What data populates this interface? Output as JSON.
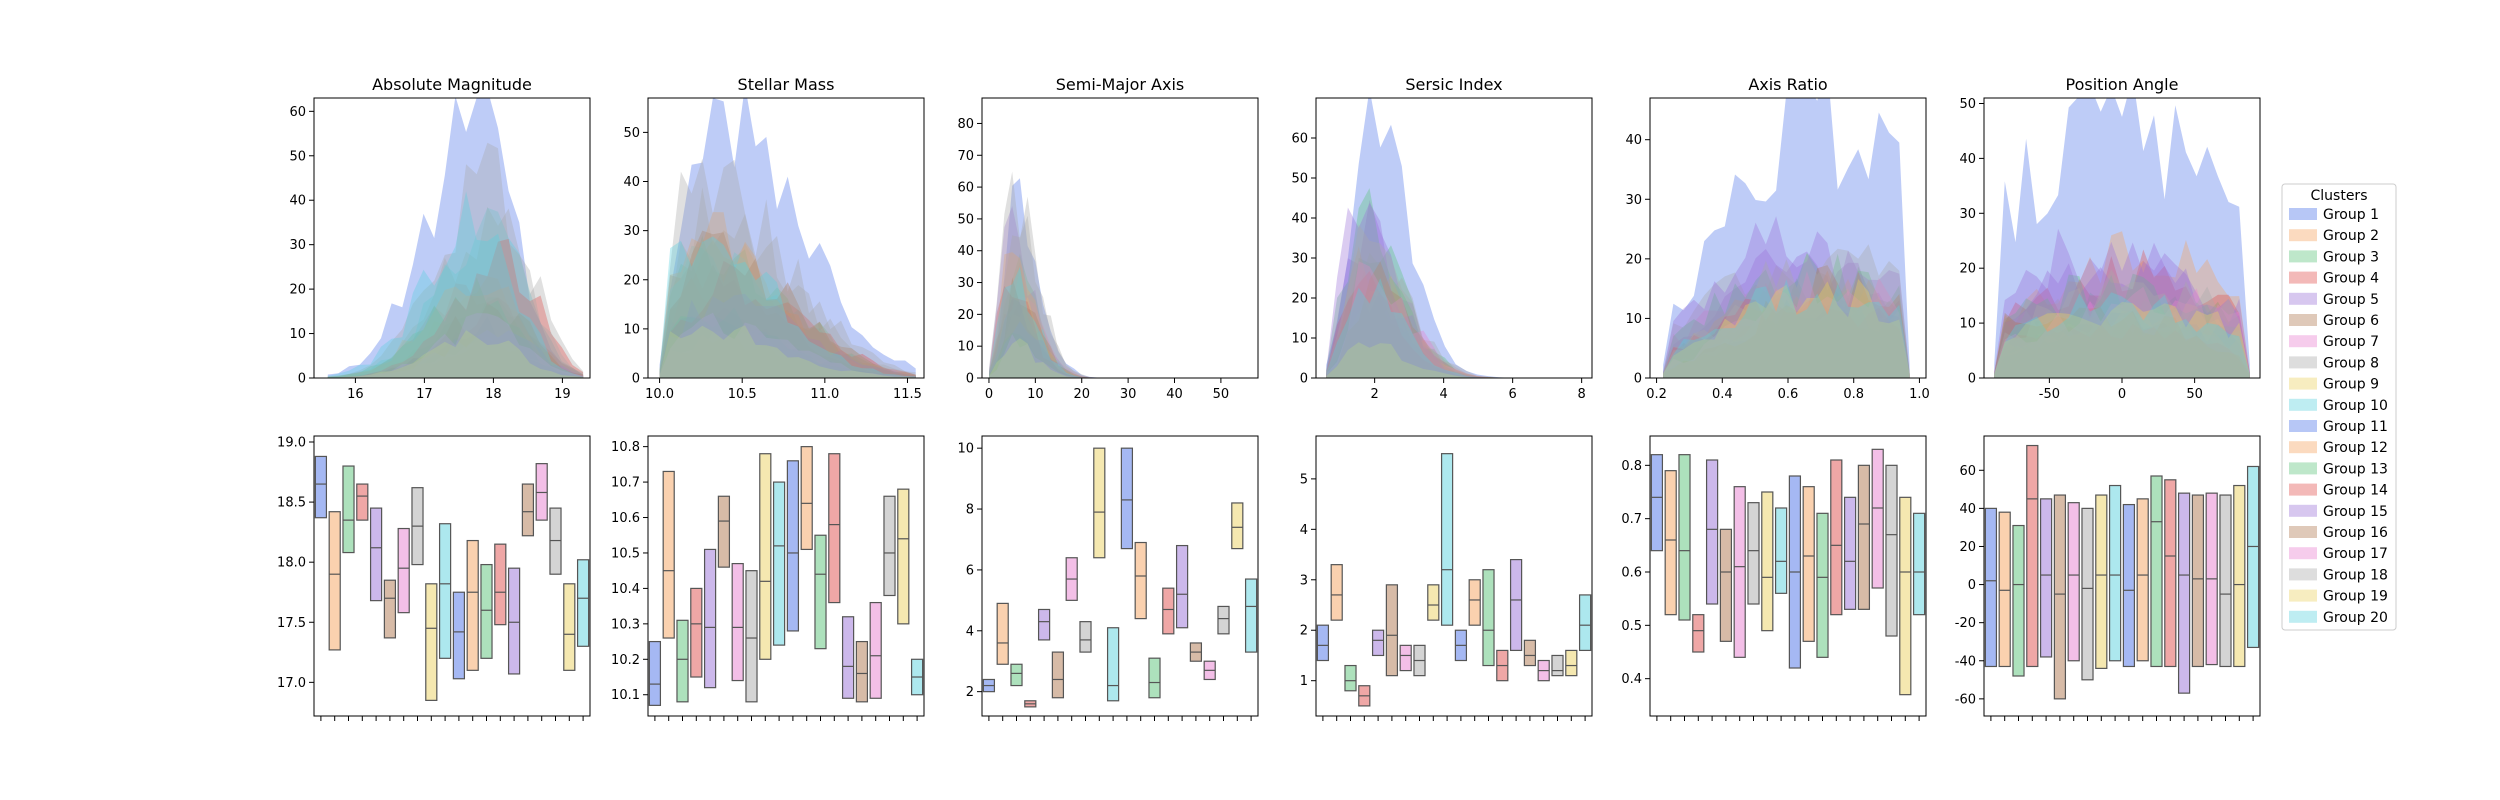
{
  "legend": {
    "title": "Clusters",
    "placement": "right"
  },
  "palette": [
    "#4c72e8",
    "#f5a35f",
    "#5cc47a",
    "#e0504d",
    "#9a72d8",
    "#b07850",
    "#e87fd0",
    "#a9a9a9",
    "#ecd262",
    "#5cd1de"
  ],
  "chart_data": [
    {
      "id": "p0",
      "type": "area",
      "title": "Absolute Magnitude",
      "xlabel": "",
      "ylabel": "",
      "xlim": [
        15.4,
        19.4
      ],
      "ylim": [
        0,
        63
      ],
      "xticks": [
        16,
        17,
        18,
        19
      ],
      "yticks": [
        0,
        10,
        20,
        30,
        40,
        50,
        60
      ],
      "lo": 15.6,
      "hi": 19.3,
      "peak": 18.0,
      "sl": 0.75,
      "sr": 0.5,
      "series1_peak": 61,
      "other_peaks": [
        28,
        36,
        30,
        20,
        18,
        22,
        48,
        16,
        40,
        22
      ]
    },
    {
      "id": "p1",
      "type": "area",
      "title": "Stellar Mass",
      "xlim": [
        9.93,
        11.6
      ],
      "ylim": [
        0,
        57
      ],
      "xticks": [
        10.0,
        10.5,
        11.0,
        11.5
      ],
      "yticks": [
        0,
        10,
        20,
        30,
        40,
        50
      ],
      "lo": 10.0,
      "hi": 11.55,
      "peak": 10.3,
      "sl": 0.25,
      "sr": 0.45,
      "series1_peak": 55,
      "other_peaks": [
        38,
        30,
        26,
        36,
        33,
        22,
        50,
        20,
        34,
        28
      ]
    },
    {
      "id": "p2",
      "type": "area",
      "title": "Semi-Major Axis",
      "xlim": [
        -1.5,
        58
      ],
      "ylim": [
        0,
        88
      ],
      "xticks": [
        0,
        10,
        20,
        30,
        40,
        50
      ],
      "yticks": [
        0,
        10,
        20,
        30,
        40,
        50,
        60,
        70,
        80
      ],
      "lo": 0,
      "hi": 40,
      "peak": 5,
      "sl": 2.2,
      "sr": 5,
      "series1_peak": 62,
      "other_peaks": [
        55,
        40,
        42,
        50,
        38,
        30,
        84,
        26,
        45,
        22
      ]
    },
    {
      "id": "p3",
      "type": "area",
      "title": "Sersic Index",
      "xlim": [
        0.3,
        8.3
      ],
      "ylim": [
        0,
        70
      ],
      "xticks": [
        2,
        4,
        6,
        8
      ],
      "yticks": [
        0,
        10,
        20,
        30,
        40,
        50,
        60
      ],
      "lo": 0.6,
      "hi": 8.1,
      "peak": 1.7,
      "sl": 0.5,
      "sr": 1.1,
      "series1_peak": 66,
      "other_peaks": [
        50,
        44,
        40,
        46,
        38,
        30,
        58,
        26,
        36,
        22
      ]
    },
    {
      "id": "p4",
      "type": "area",
      "title": "Axis Ratio",
      "xlim": [
        0.18,
        1.02
      ],
      "ylim": [
        0,
        47
      ],
      "xticks": [
        0.2,
        0.4,
        0.6,
        0.8,
        1.0
      ],
      "yticks": [
        0,
        10,
        20,
        30,
        40
      ],
      "lo": 0.22,
      "hi": 0.97,
      "peak": 0.65,
      "sl": 0.25,
      "sr": 0.4,
      "series1_peak": 44,
      "other_peaks": [
        30,
        22,
        24,
        26,
        28,
        18,
        35,
        16,
        24,
        14
      ]
    },
    {
      "id": "p5",
      "type": "area",
      "title": "Position Angle",
      "xlim": [
        -95,
        95
      ],
      "ylim": [
        0,
        51
      ],
      "xticks": [
        -50,
        0,
        50
      ],
      "yticks": [
        0,
        10,
        20,
        30,
        40,
        50
      ],
      "lo": -88,
      "hi": 88,
      "peak": 0,
      "sl": 80,
      "sr": 80,
      "series1_peak": 48,
      "other_peaks": [
        24,
        22,
        20,
        30,
        26,
        18,
        34,
        16,
        26,
        14
      ]
    },
    {
      "id": "b0",
      "type": "box",
      "ylim": [
        16.72,
        19.05
      ],
      "yticks": [
        17.0,
        17.5,
        18.0,
        18.5,
        19.0
      ],
      "boxes": [
        [
          18.37,
          18.88,
          18.65
        ],
        [
          17.27,
          18.42,
          17.9
        ],
        [
          18.08,
          18.8,
          18.35
        ],
        [
          18.35,
          18.65,
          18.55
        ],
        [
          17.68,
          18.45,
          18.12
        ],
        [
          17.37,
          17.85,
          17.7
        ],
        [
          17.58,
          18.28,
          17.95
        ],
        [
          17.98,
          18.62,
          18.3
        ],
        [
          16.85,
          17.82,
          17.45
        ],
        [
          17.2,
          18.32,
          17.82
        ],
        [
          17.03,
          17.75,
          17.42
        ],
        [
          17.1,
          18.18,
          17.75
        ],
        [
          17.2,
          17.98,
          17.6
        ],
        [
          17.48,
          18.15,
          17.75
        ],
        [
          17.07,
          17.95,
          17.5
        ],
        [
          18.22,
          18.65,
          18.42
        ],
        [
          18.35,
          18.82,
          18.58
        ],
        [
          17.9,
          18.45,
          18.18
        ],
        [
          17.1,
          17.82,
          17.4
        ],
        [
          17.3,
          18.02,
          17.7
        ]
      ]
    },
    {
      "id": "b1",
      "type": "box",
      "ylim": [
        10.04,
        10.83
      ],
      "yticks": [
        10.1,
        10.2,
        10.3,
        10.4,
        10.5,
        10.6,
        10.7,
        10.8
      ],
      "boxes": [
        [
          10.07,
          10.25,
          10.13
        ],
        [
          10.26,
          10.73,
          10.45
        ],
        [
          10.08,
          10.31,
          10.2
        ],
        [
          10.15,
          10.4,
          10.3
        ],
        [
          10.12,
          10.51,
          10.29
        ],
        [
          10.46,
          10.66,
          10.59
        ],
        [
          10.14,
          10.47,
          10.29
        ],
        [
          10.08,
          10.45,
          10.26
        ],
        [
          10.2,
          10.78,
          10.42
        ],
        [
          10.24,
          10.7,
          10.52
        ],
        [
          10.28,
          10.76,
          10.5
        ],
        [
          10.51,
          10.8,
          10.64
        ],
        [
          10.23,
          10.55,
          10.44
        ],
        [
          10.36,
          10.78,
          10.58
        ],
        [
          10.09,
          10.32,
          10.18
        ],
        [
          10.08,
          10.25,
          10.16
        ],
        [
          10.09,
          10.36,
          10.21
        ],
        [
          10.38,
          10.66,
          10.5
        ],
        [
          10.3,
          10.68,
          10.54
        ],
        [
          10.1,
          10.2,
          10.15
        ]
      ]
    },
    {
      "id": "b2",
      "type": "box",
      "ylim": [
        1.2,
        10.4
      ],
      "yticks": [
        2,
        4,
        6,
        8,
        10
      ],
      "boxes": [
        [
          2.0,
          2.4,
          2.2
        ],
        [
          2.9,
          4.9,
          3.6
        ],
        [
          2.2,
          2.9,
          2.6
        ],
        [
          1.5,
          1.7,
          1.6
        ],
        [
          3.7,
          4.7,
          4.3
        ],
        [
          1.8,
          3.3,
          2.4
        ],
        [
          5.0,
          6.4,
          5.7
        ],
        [
          3.3,
          4.3,
          3.7
        ],
        [
          6.4,
          10.0,
          7.9
        ],
        [
          1.7,
          4.1,
          2.2
        ],
        [
          6.7,
          10.0,
          8.3
        ],
        [
          4.4,
          6.9,
          5.8
        ],
        [
          1.8,
          3.1,
          2.3
        ],
        [
          3.9,
          5.4,
          4.7
        ],
        [
          4.1,
          6.8,
          5.2
        ],
        [
          3.0,
          3.6,
          3.3
        ],
        [
          2.4,
          3.0,
          2.7
        ],
        [
          3.9,
          4.8,
          4.4
        ],
        [
          6.7,
          8.2,
          7.4
        ],
        [
          3.3,
          5.7,
          4.8
        ]
      ]
    },
    {
      "id": "b3",
      "type": "box",
      "ylim": [
        0.3,
        5.85
      ],
      "yticks": [
        1,
        2,
        3,
        4,
        5
      ],
      "boxes": [
        [
          1.4,
          2.1,
          1.7
        ],
        [
          2.2,
          3.3,
          2.7
        ],
        [
          0.8,
          1.3,
          1.0
        ],
        [
          0.5,
          0.9,
          0.7
        ],
        [
          1.5,
          2.0,
          1.8
        ],
        [
          1.1,
          2.9,
          1.9
        ],
        [
          1.2,
          1.7,
          1.5
        ],
        [
          1.1,
          1.7,
          1.4
        ],
        [
          2.2,
          2.9,
          2.5
        ],
        [
          2.1,
          5.5,
          3.2
        ],
        [
          1.4,
          2.0,
          1.7
        ],
        [
          2.1,
          3.0,
          2.6
        ],
        [
          1.3,
          3.2,
          2.0
        ],
        [
          1.0,
          1.6,
          1.3
        ],
        [
          1.6,
          3.4,
          2.6
        ],
        [
          1.3,
          1.8,
          1.5
        ],
        [
          1.0,
          1.4,
          1.2
        ],
        [
          1.1,
          1.5,
          1.2
        ],
        [
          1.1,
          1.6,
          1.3
        ],
        [
          1.6,
          2.7,
          2.1
        ]
      ]
    },
    {
      "id": "b4",
      "type": "box",
      "ylim": [
        0.33,
        0.855
      ],
      "yticks": [
        0.4,
        0.5,
        0.6,
        0.7,
        0.8
      ],
      "boxes": [
        [
          0.64,
          0.82,
          0.74
        ],
        [
          0.52,
          0.79,
          0.66
        ],
        [
          0.51,
          0.82,
          0.64
        ],
        [
          0.45,
          0.52,
          0.49
        ],
        [
          0.54,
          0.81,
          0.68
        ],
        [
          0.47,
          0.68,
          0.6
        ],
        [
          0.44,
          0.76,
          0.61
        ],
        [
          0.54,
          0.73,
          0.64
        ],
        [
          0.49,
          0.75,
          0.59
        ],
        [
          0.56,
          0.72,
          0.62
        ],
        [
          0.42,
          0.78,
          0.6
        ],
        [
          0.47,
          0.76,
          0.63
        ],
        [
          0.44,
          0.71,
          0.59
        ],
        [
          0.52,
          0.81,
          0.65
        ],
        [
          0.53,
          0.74,
          0.62
        ],
        [
          0.53,
          0.8,
          0.69
        ],
        [
          0.57,
          0.83,
          0.72
        ],
        [
          0.48,
          0.8,
          0.67
        ],
        [
          0.37,
          0.74,
          0.6
        ],
        [
          0.52,
          0.71,
          0.6
        ]
      ]
    },
    {
      "id": "b5",
      "type": "box",
      "ylim": [
        -69,
        78
      ],
      "yticks": [
        -60,
        -40,
        -20,
        0,
        20,
        40,
        60
      ],
      "boxes": [
        [
          -43,
          40,
          2
        ],
        [
          -43,
          38,
          -3
        ],
        [
          -48,
          31,
          0
        ],
        [
          -43,
          73,
          45
        ],
        [
          -38,
          45,
          5
        ],
        [
          -60,
          47,
          -5
        ],
        [
          -40,
          43,
          5
        ],
        [
          -50,
          40,
          -2
        ],
        [
          -44,
          47,
          5
        ],
        [
          -40,
          52,
          5
        ],
        [
          -43,
          42,
          -3
        ],
        [
          -40,
          45,
          5
        ],
        [
          -43,
          57,
          33
        ],
        [
          -43,
          55,
          15
        ],
        [
          -57,
          48,
          5
        ],
        [
          -43,
          47,
          3
        ],
        [
          -42,
          48,
          3
        ],
        [
          -43,
          47,
          -5
        ],
        [
          -43,
          52,
          0
        ],
        [
          -33,
          62,
          20
        ]
      ]
    }
  ]
}
